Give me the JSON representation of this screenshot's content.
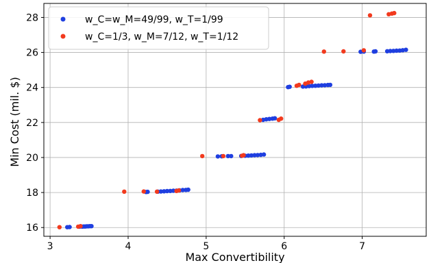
{
  "chart_data": {
    "type": "scatter",
    "xlabel": "Max Convertibility",
    "ylabel": "Min Cost (mil. $)",
    "xlim": [
      2.92,
      7.82
    ],
    "ylim": [
      15.5,
      28.8
    ],
    "xticks": [
      3,
      4,
      5,
      6,
      7
    ],
    "yticks": [
      16,
      18,
      20,
      22,
      24,
      26,
      28
    ],
    "grid": true,
    "legend_position": "top-left",
    "series": [
      {
        "name": "w_C=w_M=49/99, w_T=1/99",
        "color": "#1f3fe0",
        "points": [
          [
            3.22,
            16.02
          ],
          [
            3.25,
            16.03
          ],
          [
            3.38,
            16.05
          ],
          [
            3.41,
            16.05
          ],
          [
            3.43,
            16.06
          ],
          [
            3.45,
            16.06
          ],
          [
            3.47,
            16.07
          ],
          [
            3.49,
            16.07
          ],
          [
            3.51,
            16.08
          ],
          [
            3.53,
            16.08
          ],
          [
            4.23,
            18.03
          ],
          [
            4.25,
            18.04
          ],
          [
            4.38,
            18.05
          ],
          [
            4.42,
            18.06
          ],
          [
            4.46,
            18.07
          ],
          [
            4.5,
            18.08
          ],
          [
            4.54,
            18.09
          ],
          [
            4.58,
            18.1
          ],
          [
            4.62,
            18.11
          ],
          [
            4.66,
            18.12
          ],
          [
            4.7,
            18.14
          ],
          [
            4.74,
            18.15
          ],
          [
            4.77,
            18.16
          ],
          [
            5.15,
            20.06
          ],
          [
            5.2,
            20.07
          ],
          [
            5.28,
            20.08
          ],
          [
            5.32,
            20.08
          ],
          [
            5.45,
            20.09
          ],
          [
            5.5,
            20.1
          ],
          [
            5.54,
            20.11
          ],
          [
            5.58,
            20.12
          ],
          [
            5.62,
            20.13
          ],
          [
            5.66,
            20.14
          ],
          [
            5.7,
            20.15
          ],
          [
            5.74,
            20.17
          ],
          [
            5.73,
            22.15
          ],
          [
            5.77,
            22.18
          ],
          [
            5.81,
            22.2
          ],
          [
            5.85,
            22.22
          ],
          [
            5.88,
            22.24
          ],
          [
            6.05,
            24.02
          ],
          [
            6.07,
            24.04
          ],
          [
            6.24,
            24.05
          ],
          [
            6.28,
            24.06
          ],
          [
            6.32,
            24.08
          ],
          [
            6.36,
            24.09
          ],
          [
            6.4,
            24.1
          ],
          [
            6.44,
            24.11
          ],
          [
            6.48,
            24.12
          ],
          [
            6.52,
            24.13
          ],
          [
            6.56,
            24.14
          ],
          [
            6.59,
            24.15
          ],
          [
            6.98,
            26.04
          ],
          [
            7.02,
            26.05
          ],
          [
            7.15,
            26.05
          ],
          [
            7.17,
            26.06
          ],
          [
            7.32,
            26.07
          ],
          [
            7.36,
            26.08
          ],
          [
            7.4,
            26.09
          ],
          [
            7.44,
            26.1
          ],
          [
            7.48,
            26.11
          ],
          [
            7.52,
            26.13
          ],
          [
            7.56,
            26.15
          ]
        ]
      },
      {
        "name": "w_C=1/3, w_M=7/12, w_T=1/12",
        "color": "#f23a1e",
        "points": [
          [
            3.12,
            16.02
          ],
          [
            3.36,
            16.05
          ],
          [
            3.39,
            16.08
          ],
          [
            3.95,
            18.05
          ],
          [
            4.2,
            18.06
          ],
          [
            4.37,
            18.05
          ],
          [
            4.62,
            18.09
          ],
          [
            4.65,
            18.12
          ],
          [
            4.95,
            20.08
          ],
          [
            5.22,
            20.08
          ],
          [
            5.46,
            20.1
          ],
          [
            5.48,
            20.13
          ],
          [
            5.69,
            22.13
          ],
          [
            5.93,
            22.15
          ],
          [
            5.96,
            22.22
          ],
          [
            6.16,
            24.1
          ],
          [
            6.19,
            24.15
          ],
          [
            6.27,
            24.22
          ],
          [
            6.31,
            24.28
          ],
          [
            6.35,
            24.32
          ],
          [
            6.51,
            26.05
          ],
          [
            6.76,
            26.06
          ],
          [
            7.02,
            26.12
          ],
          [
            7.1,
            28.12
          ],
          [
            7.34,
            28.18
          ],
          [
            7.38,
            28.22
          ],
          [
            7.41,
            28.25
          ]
        ]
      }
    ]
  }
}
